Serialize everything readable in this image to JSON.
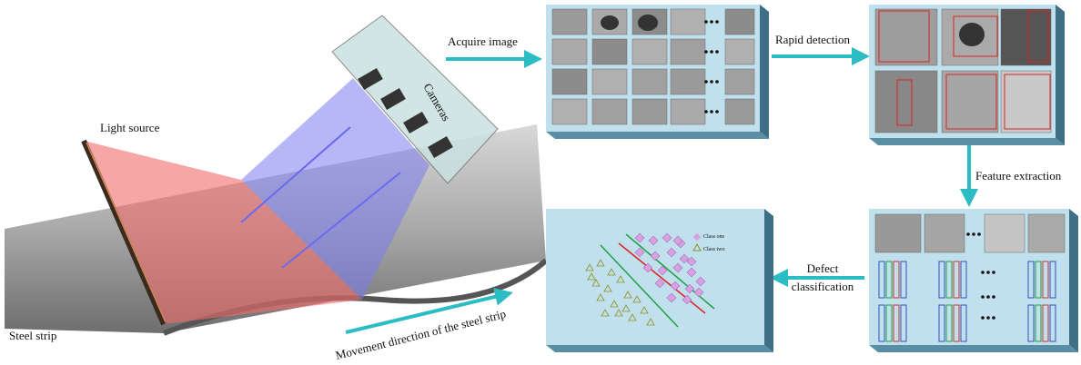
{
  "labels": {
    "light_source": "Light source",
    "cameras": "Cameras",
    "steel_strip": "Steel strip",
    "movement": "Movement direction of the steel strip",
    "acquire": "Acquire image",
    "rapid": "Rapid detection",
    "feature": "Feature extraction",
    "defect": [
      "Defect",
      "classification"
    ],
    "class_one": "Class one",
    "class_two": "Class two"
  }
}
